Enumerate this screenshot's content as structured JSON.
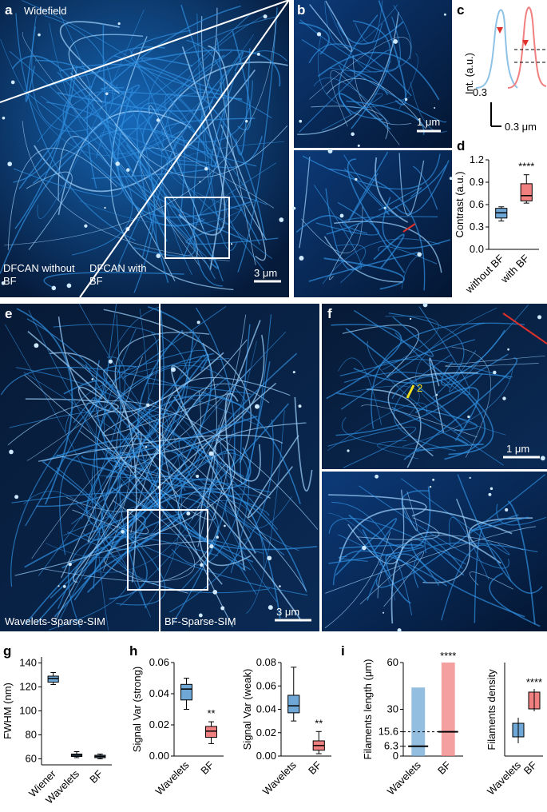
{
  "panels": {
    "a": {
      "label": "a",
      "title": "Widefield",
      "left": "DFCAN without BF",
      "right": "DFCAN with BF",
      "scale": "3 μm"
    },
    "b": {
      "label": "b",
      "scale": "1 μm"
    },
    "c": {
      "label": "c",
      "ylabel": "Int. (a.u.)",
      "yscale": "0.3",
      "xscale": "0.3 μm"
    },
    "d": {
      "label": "d"
    },
    "e": {
      "label": "e",
      "left": "Wavelets-Sparse-SIM",
      "right": "BF-Sparse-SIM",
      "scale": "3 μm"
    },
    "f": {
      "label": "f",
      "line": "2",
      "scale": "1 μm"
    },
    "g": {
      "label": "g"
    },
    "h": {
      "label": "h"
    },
    "i": {
      "label": "i"
    },
    "density": {
      "ylabel": "Filaments density",
      "categories": [
        "Wavelets",
        "BF"
      ],
      "annotation": "****"
    }
  },
  "chart_data": [
    {
      "type": "box",
      "ylabel": "Contrast (a.u.)",
      "categories": [
        "without BF",
        "with BF"
      ],
      "colors": [
        "#6fa8d6",
        "#f08080"
      ],
      "min": [
        0.38,
        0.62
      ],
      "q1": [
        0.42,
        0.65
      ],
      "median": [
        0.49,
        0.72
      ],
      "q3": [
        0.55,
        0.88
      ],
      "max": [
        0.57,
        1.0
      ],
      "ylim": [
        0,
        1.2
      ],
      "yticks": [
        {
          "value": 0,
          "label": "0.0"
        },
        0.3,
        0.6,
        0.9,
        1.2
      ],
      "annotation": "****"
    },
    {
      "type": "box",
      "ylabel": "FWHM (nm)",
      "categories": [
        "Wiener",
        "Wavelets",
        "BF"
      ],
      "colors": [
        "#6fa8d6",
        "#6fa8d6",
        "#6fa8d6"
      ],
      "min": [
        122,
        61,
        60
      ],
      "q1": [
        124,
        62,
        61
      ],
      "median": [
        127,
        63,
        62
      ],
      "q3": [
        129,
        64,
        63
      ],
      "max": [
        132,
        66,
        64
      ],
      "ylim": [
        55,
        145
      ],
      "yticks": [
        60,
        80,
        100,
        120,
        140
      ]
    },
    {
      "type": "box",
      "ylabel": "Signal Var (strong)",
      "categories": [
        "Wavelets",
        "BF"
      ],
      "colors": [
        "#6fa8d6",
        "#f08080"
      ],
      "min": [
        0.03,
        0.008
      ],
      "q1": [
        0.036,
        0.012
      ],
      "median": [
        0.043,
        0.016
      ],
      "q3": [
        0.046,
        0.019
      ],
      "max": [
        0.05,
        0.022
      ],
      "ylim": [
        0,
        0.06
      ],
      "yticks": [
        {
          "value": 0,
          "label": "0.00"
        },
        0.02,
        0.04,
        0.06
      ],
      "annotation": "**"
    },
    {
      "type": "box",
      "ylabel": "Signal Var (weak)",
      "categories": [
        "Wavelets",
        "BF"
      ],
      "colors": [
        "#6fa8d6",
        "#f08080"
      ],
      "min": [
        0.03,
        0.002
      ],
      "q1": [
        0.037,
        0.005
      ],
      "median": [
        0.043,
        0.009
      ],
      "q3": [
        0.052,
        0.013
      ],
      "max": [
        0.076,
        0.021
      ],
      "ylim": [
        0,
        0.08
      ],
      "yticks": [
        {
          "value": 0,
          "label": "0.00"
        },
        0.02,
        0.04,
        0.06,
        0.08
      ],
      "annotation": "**"
    },
    {
      "type": "strip",
      "ylabel": "Filaments length (μm)",
      "categories": [
        "Wavelets",
        "BF"
      ],
      "colors": [
        "#6fa8d6",
        "#f08080"
      ],
      "values": [
        6.3,
        15.6
      ],
      "max": [
        44,
        60
      ],
      "ylim": [
        0,
        60
      ],
      "yticks": [
        0,
        6.3,
        15.6,
        30,
        60
      ],
      "annotation": "****"
    }
  ]
}
